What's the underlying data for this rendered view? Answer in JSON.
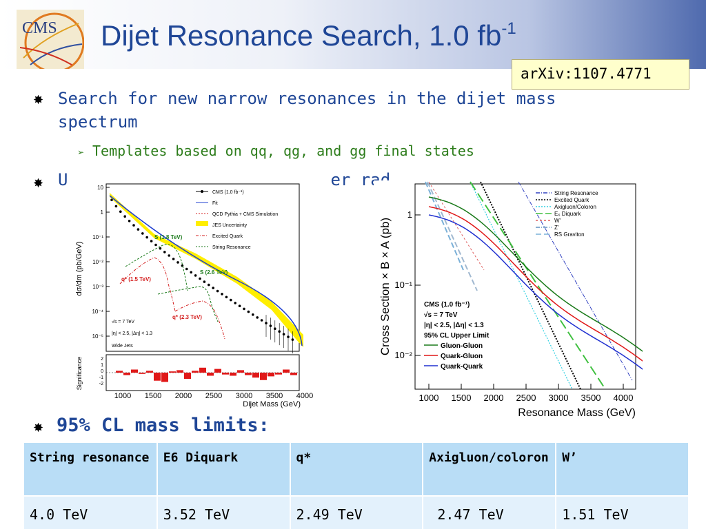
{
  "slide": {
    "title": "Dijet Resonance Search, 1.0 fb",
    "title_superscript": "-1",
    "logo_text": "CMS",
    "arxiv": "arXiv:1107.4771"
  },
  "bullets": {
    "b1": "Search for new narrow resonances in the dijet mass spectrum",
    "sub": "Templates based on qq, qg, and gg final states",
    "b2_visible": "U",
    "b2_tail": "er rad",
    "limits_heading": "95% CL mass limits:"
  },
  "left_plot": {
    "ylabel": "dσ/dm (pb/GeV)",
    "xlabel": "Dijet Mass (GeV)",
    "sig_label": "Significance",
    "y_ticks": [
      "10",
      "1",
      "10⁻¹",
      "10⁻²",
      "10⁻³",
      "10⁻⁴",
      "10⁻⁵"
    ],
    "x_ticks": [
      "1000",
      "1500",
      "2000",
      "2500",
      "3000",
      "3500",
      "4000"
    ],
    "sig_ticks": [
      "2",
      "1",
      "0",
      "-1",
      "-2"
    ],
    "legend": [
      "CMS (1.0 fb⁻¹)",
      "Fit",
      "QCD Pythia + CMS Simulation",
      "JES Uncertainty",
      "Excited Quark",
      "String Resonance"
    ],
    "annotations": {
      "s18": "S (1.8 TeV)",
      "s26": "S (2.6 TeV)",
      "q15": "q* (1.5 TeV)",
      "q23": "q* (2.3 TeV)",
      "sqrt_s": "√s = 7 TeV",
      "eta_cut": "|η| < 2.5, |Δη| < 1.3",
      "jets": "Wide Jets"
    },
    "colors": {
      "data": "#000000",
      "fit": "#1f3fd0",
      "jes": "#ffee00",
      "excited": "#d42020",
      "string": "#1a7a1a"
    }
  },
  "right_plot": {
    "ylabel": "Cross Section × B × A (pb)",
    "xlabel": "Resonance Mass (GeV)",
    "y_ticks": [
      "1",
      "10⁻¹",
      "10⁻²"
    ],
    "x_ticks": [
      "1000",
      "1500",
      "2000",
      "2500",
      "3000",
      "3500",
      "4000"
    ],
    "legend": [
      "String Resonance",
      "Excited Quark",
      "Axigluon/Coloron",
      "E₆ Diquark",
      "W'",
      "Z'",
      "RS Graviton"
    ],
    "info": [
      "CMS (1.0 fb⁻¹)",
      "√s = 7 TeV",
      "|η| < 2.5, |Δη| < 1.3",
      "95% CL Upper Limit",
      "Gluon-Gluon",
      "Quark-Gluon",
      "Quark-Quark"
    ],
    "colors": {
      "gg": "#1a7a1a",
      "qg": "#e01818",
      "qq": "#2030d0"
    }
  },
  "limits_table": {
    "headers": [
      "String resonance",
      "E6 Diquark",
      "q*",
      "Axigluon/coloron",
      "W’"
    ],
    "values": [
      "4.0 TeV",
      "3.52 TeV",
      "2.49 TeV",
      " 2.47 TeV",
      "1.51 TeV"
    ]
  }
}
